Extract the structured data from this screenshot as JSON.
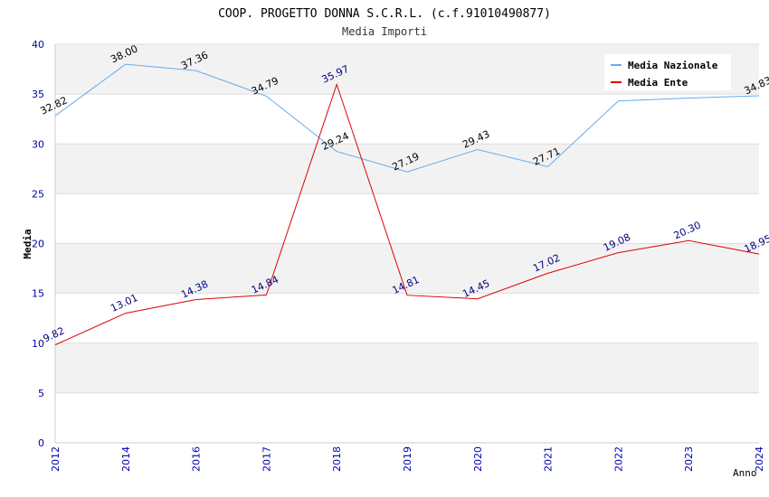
{
  "chart_data": {
    "type": "line",
    "title": "COOP. PROGETTO DONNA S.C.R.L. (c.f.91010490877)",
    "subtitle": "Media Importi",
    "xlabel": "Anno",
    "ylabel": "Media",
    "x": [
      "2012",
      "2014",
      "2016",
      "2017",
      "2018",
      "2019",
      "2020",
      "2021",
      "2022",
      "2023",
      "2024"
    ],
    "ylim": [
      0,
      40
    ],
    "yticks": [
      0,
      5,
      10,
      15,
      20,
      25,
      30,
      35,
      40
    ],
    "grid": true,
    "legend_position": "top-right",
    "series": [
      {
        "name": "Media Nazionale",
        "color": "#66aaee",
        "label_color": "#000000",
        "values": [
          32.82,
          38.0,
          37.36,
          34.79,
          29.24,
          27.19,
          29.43,
          27.71,
          34.3,
          34.6,
          34.83
        ],
        "labels": [
          "32.82",
          "38.00",
          "37.36",
          "34.79",
          "29.24",
          "27.19",
          "29.43",
          "27.71",
          "",
          "",
          "34.83"
        ]
      },
      {
        "name": "Media Ente",
        "color": "#dd0000",
        "label_color": "#000080",
        "values": [
          9.82,
          13.01,
          14.38,
          14.84,
          35.97,
          14.81,
          14.45,
          17.02,
          19.08,
          20.3,
          18.95
        ],
        "labels": [
          "9.82",
          "13.01",
          "14.38",
          "14.84",
          "35.97",
          "14.81",
          "14.45",
          "17.02",
          "19.08",
          "20.30",
          "18.95"
        ]
      }
    ]
  }
}
